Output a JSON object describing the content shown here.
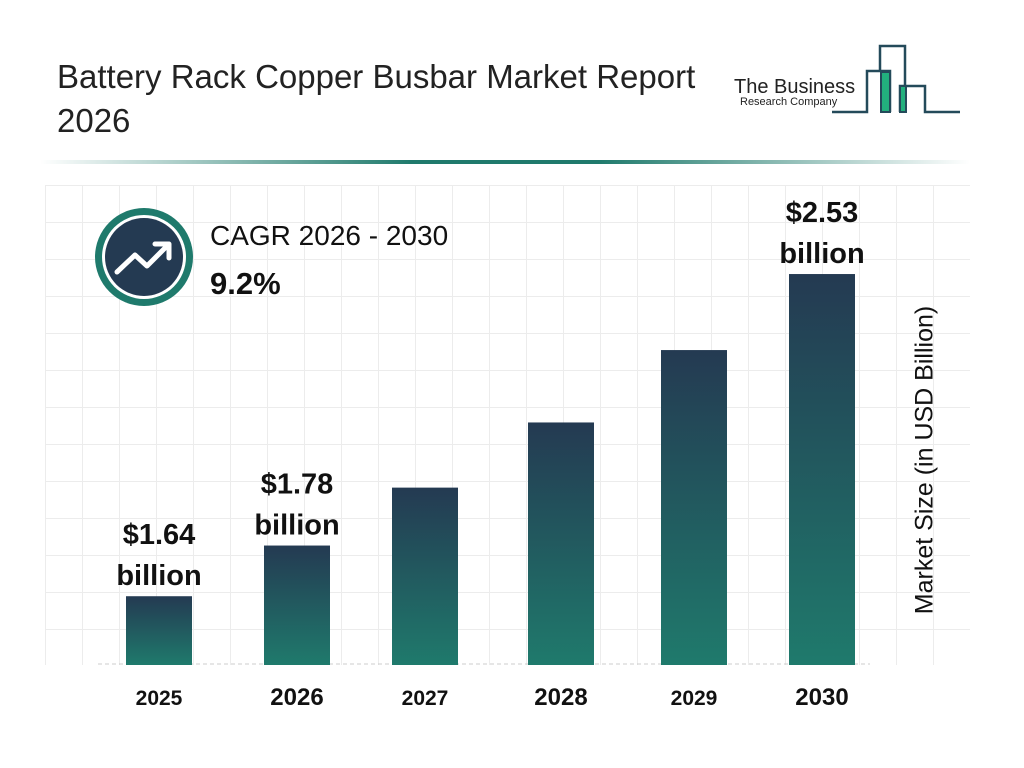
{
  "header": {
    "title": "Battery Rack Copper Busbar Market Report 2026"
  },
  "logo": {
    "line1": "The Business",
    "line2": "Research Company"
  },
  "cagr": {
    "label": "CAGR 2026 - 2030",
    "value": "9.2%",
    "icon": "trending-up-icon"
  },
  "colors": {
    "bar_top": "#243a52",
    "bar_bottom": "#1f7a6c",
    "accent": "#1f7a6c",
    "logo_green": "#22b07d"
  },
  "chart_data": {
    "type": "bar",
    "title": "",
    "xlabel": "",
    "ylabel": "Market Size (in USD Billion)",
    "categories": [
      "2025",
      "2026",
      "2027",
      "2028",
      "2029",
      "2030"
    ],
    "values": [
      1.64,
      1.78,
      1.94,
      2.12,
      2.32,
      2.53
    ],
    "data_labels": [
      {
        "category": "2025",
        "line1": "$1.64",
        "line2": "billion"
      },
      {
        "category": "2026",
        "line1": "$1.78",
        "line2": "billion"
      },
      {
        "category": "2030",
        "line1": "$2.53",
        "line2": "billion"
      }
    ],
    "grid": true
  }
}
